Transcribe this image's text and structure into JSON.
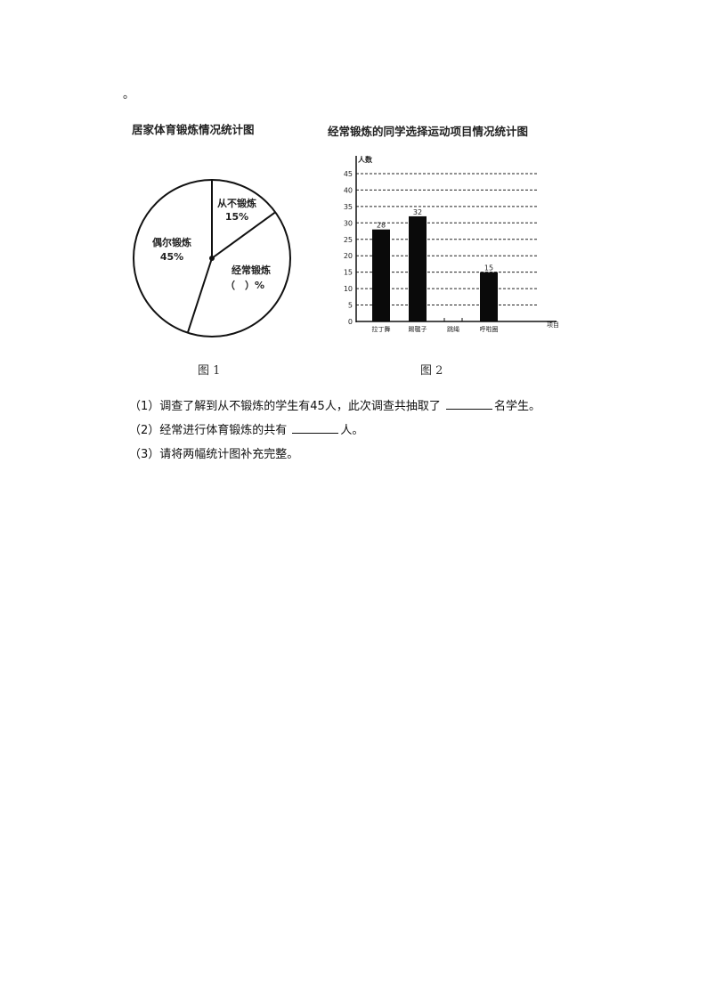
{
  "lead_mark": "。",
  "pie_title": "居家体育锻炼情况统计图",
  "bar_title": "经常锻炼的同学选择运动项目情况统计图",
  "fig1": "图 1",
  "fig2": "图 2",
  "chart_data": [
    {
      "type": "pie",
      "title": "居家体育锻炼情况统计图",
      "slices": [
        {
          "label": "从不锻炼",
          "value_label": "15%",
          "value": 15
        },
        {
          "label": "经常锻炼",
          "value_label": "（　）%",
          "value": null
        },
        {
          "label": "偶尔锻炼",
          "value_label": "45%",
          "value": 45
        }
      ]
    },
    {
      "type": "bar",
      "title": "经常锻炼的同学选择运动项目情况统计图",
      "ylabel": "人数",
      "xlabel": "项目",
      "categories": [
        "拉丁舞",
        "踢毽子",
        "跳绳",
        "呼啦圈"
      ],
      "values": [
        28,
        32,
        null,
        15
      ],
      "data_labels": [
        "28",
        "32",
        "",
        "15"
      ],
      "yticks": [
        0,
        5,
        10,
        15,
        20,
        25,
        30,
        35,
        40,
        45
      ],
      "ylim": [
        0,
        45
      ],
      "grid": "dashed horizontal"
    }
  ],
  "questions": [
    {
      "pre": "（1）调查了解到从不锻炼的学生有45人，此次调查共抽取了 ",
      "post": "名学生。"
    },
    {
      "pre": "（2）经常进行体育锻炼的共有 ",
      "post": "人。"
    },
    {
      "text": "（3）请将两幅统计图补充完整。"
    }
  ]
}
